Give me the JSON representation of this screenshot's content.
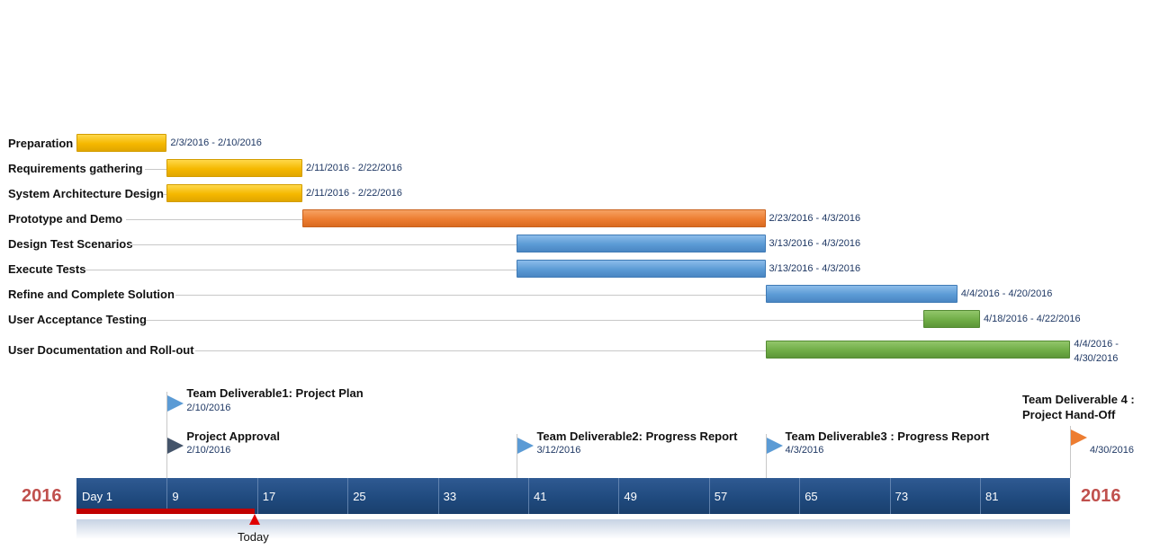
{
  "chart_data": {
    "type": "gantt",
    "tasks": [
      {
        "name": "Preparation",
        "start": "2016-02-03",
        "end": "2016-02-10",
        "label": "2/3/2016 - 2/10/2016",
        "color": "#f5b800"
      },
      {
        "name": "Requirements gathering",
        "start": "2016-02-11",
        "end": "2016-02-22",
        "label": "2/11/2016 - 2/22/2016",
        "color": "#f5b800"
      },
      {
        "name": "System Architecture Design",
        "start": "2016-02-11",
        "end": "2016-02-22",
        "label": "2/11/2016 - 2/22/2016",
        "color": "#f5b800"
      },
      {
        "name": "Prototype and Demo",
        "start": "2016-02-23",
        "end": "2016-04-03",
        "label": "2/23/2016 - 4/3/2016",
        "color": "#ed7d31"
      },
      {
        "name": "Design Test Scenarios",
        "start": "2016-03-13",
        "end": "2016-04-03",
        "label": "3/13/2016 - 4/3/2016",
        "color": "#5b9bd5"
      },
      {
        "name": "Execute Tests",
        "start": "2016-03-13",
        "end": "2016-04-03",
        "label": "3/13/2016 - 4/3/2016",
        "color": "#5b9bd5"
      },
      {
        "name": "Refine and Complete Solution",
        "start": "2016-04-04",
        "end": "2016-04-20",
        "label": "4/4/2016 - 4/20/2016",
        "color": "#5b9bd5"
      },
      {
        "name": "User Acceptance Testing",
        "start": "2016-04-18",
        "end": "2016-04-22",
        "label": "4/18/2016 - 4/22/2016",
        "color": "#70ad47"
      },
      {
        "name": "User Documentation and Roll-out",
        "start": "2016-04-04",
        "end": "2016-04-30",
        "label": "4/4/2016 - 4/30/2016",
        "color": "#70ad47"
      }
    ],
    "milestones": [
      {
        "title": "Team Deliverable1: Project Plan",
        "date": "2016-02-10",
        "label": "2/10/2016",
        "color": "#5b9bd5"
      },
      {
        "title": "Project Approval",
        "date": "2016-02-10",
        "label": "2/10/2016",
        "color": "#44546a"
      },
      {
        "title": "Team Deliverable2: Progress Report",
        "date": "2016-03-12",
        "label": "3/12/2016",
        "color": "#5b9bd5"
      },
      {
        "title": "Team Deliverable3 : Progress Report",
        "date": "2016-04-03",
        "label": "4/3/2016",
        "color": "#5b9bd5"
      },
      {
        "title": "Team Deliverable 4 : Project Hand-Off",
        "date": "2016-04-30",
        "label": "4/30/2016",
        "color": "#ed7d31"
      }
    ],
    "timeline": {
      "year_left": "2016",
      "year_right": "2016",
      "ticks": [
        "Day 1",
        "9",
        "17",
        "25",
        "33",
        "41",
        "49",
        "57",
        "65",
        "73",
        "81"
      ],
      "range": [
        "2016-02-03",
        "2016-04-30"
      ]
    },
    "today": {
      "label": "Today",
      "date": "2016-02-22"
    }
  }
}
